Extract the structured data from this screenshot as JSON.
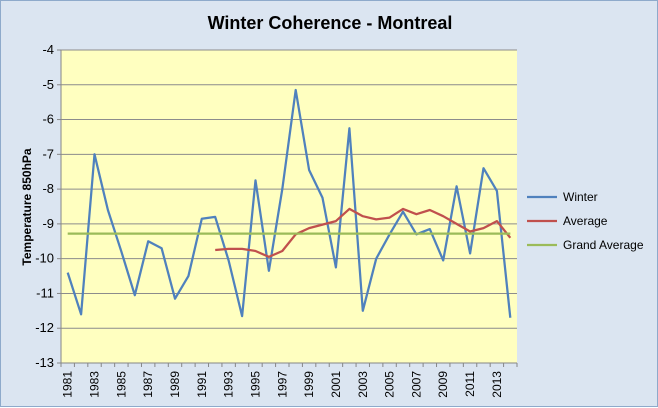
{
  "chart_data": {
    "type": "line",
    "title": "Winter Coherence - Montreal",
    "xlabel": "",
    "ylabel": "Temperature 850hPa",
    "ylim": [
      -13,
      -4
    ],
    "yticks": [
      -4,
      -5,
      -6,
      -7,
      -8,
      -9,
      -10,
      -11,
      -12,
      -13
    ],
    "x": [
      1981,
      1982,
      1983,
      1984,
      1985,
      1986,
      1987,
      1988,
      1989,
      1990,
      1991,
      1992,
      1993,
      1994,
      1995,
      1996,
      1997,
      1998,
      1999,
      2000,
      2001,
      2002,
      2003,
      2004,
      2005,
      2006,
      2007,
      2008,
      2009,
      2010,
      2011,
      2012,
      2013,
      2014
    ],
    "xtick_labels": [
      "1981",
      "1983",
      "1985",
      "1987",
      "1989",
      "1991",
      "1993",
      "1995",
      "1997",
      "1999",
      "2001",
      "2003",
      "2005",
      "2007",
      "2009",
      "2011",
      "2013"
    ],
    "grid": true,
    "legend_position": "right",
    "series": [
      {
        "name": "Winter",
        "color": "#4f81bd",
        "values": [
          -10.4,
          -11.6,
          -7.0,
          -8.6,
          -9.8,
          -11.05,
          -9.5,
          -9.7,
          -11.15,
          -10.5,
          -8.85,
          -8.8,
          -10.05,
          -11.65,
          -7.75,
          -10.35,
          -8.0,
          -5.15,
          -7.45,
          -8.25,
          -10.25,
          -6.25,
          -11.5,
          -10.0,
          -9.3,
          -8.65,
          -9.3,
          -9.15,
          -10.05,
          -7.92,
          -9.85,
          -7.4,
          -8.05,
          -11.7
        ]
      },
      {
        "name": "Average",
        "color": "#c0504d",
        "values": [
          null,
          null,
          null,
          null,
          null,
          null,
          null,
          null,
          null,
          null,
          null,
          -9.75,
          -9.72,
          -9.72,
          -9.78,
          -9.95,
          -9.78,
          -9.3,
          -9.12,
          -9.02,
          -8.92,
          -8.57,
          -8.78,
          -8.87,
          -8.82,
          -8.57,
          -8.72,
          -8.6,
          -8.78,
          -9.0,
          -9.22,
          -9.12,
          -8.92,
          -9.4
        ]
      },
      {
        "name": "Grand Average",
        "color": "#9bbb59",
        "values": [
          -9.28,
          -9.28,
          -9.28,
          -9.28,
          -9.28,
          -9.28,
          -9.28,
          -9.28,
          -9.28,
          -9.28,
          -9.28,
          -9.28,
          -9.28,
          -9.28,
          -9.28,
          -9.28,
          -9.28,
          -9.28,
          -9.28,
          -9.28,
          -9.28,
          -9.28,
          -9.28,
          -9.28,
          -9.28,
          -9.28,
          -9.28,
          -9.28,
          -9.28,
          -9.28,
          -9.28,
          -9.28,
          -9.28,
          -9.28
        ]
      }
    ]
  }
}
